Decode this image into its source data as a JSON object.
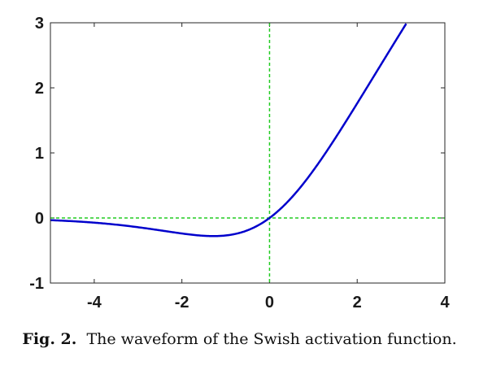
{
  "chart_data": {
    "type": "line",
    "function": "swish",
    "xlim": [
      -5,
      4
    ],
    "ylim": [
      -1,
      3
    ],
    "x_ticks": [
      -4,
      -2,
      0,
      2,
      4
    ],
    "y_ticks": [
      -1,
      0,
      1,
      2,
      3
    ],
    "x_tick_labels": [
      "-4",
      "-2",
      "0",
      "2",
      "4"
    ],
    "y_tick_labels": [
      "-1",
      "0",
      "1",
      "2",
      "3"
    ],
    "series": [
      {
        "color": "#0000cc",
        "x": [
          -5,
          -4.5,
          -4,
          -3.5,
          -3,
          -2.5,
          -2,
          -1.5,
          -1.25,
          -1,
          -0.5,
          0,
          0.5,
          1,
          1.5,
          2,
          2.5,
          3,
          3.2
        ],
        "values": [
          -0.033,
          -0.05,
          -0.072,
          -0.102,
          -0.142,
          -0.189,
          -0.238,
          -0.274,
          -0.278,
          -0.269,
          -0.189,
          0,
          0.311,
          0.731,
          1.226,
          1.762,
          2.317,
          2.858,
          3.075
        ]
      }
    ],
    "reference_lines": {
      "color": "#22cc22",
      "style": "dashed",
      "x": 0,
      "y": 0
    },
    "grid": false
  },
  "caption": {
    "label": "Fig. 2.",
    "text": "The waveform of the Swish activation function."
  }
}
